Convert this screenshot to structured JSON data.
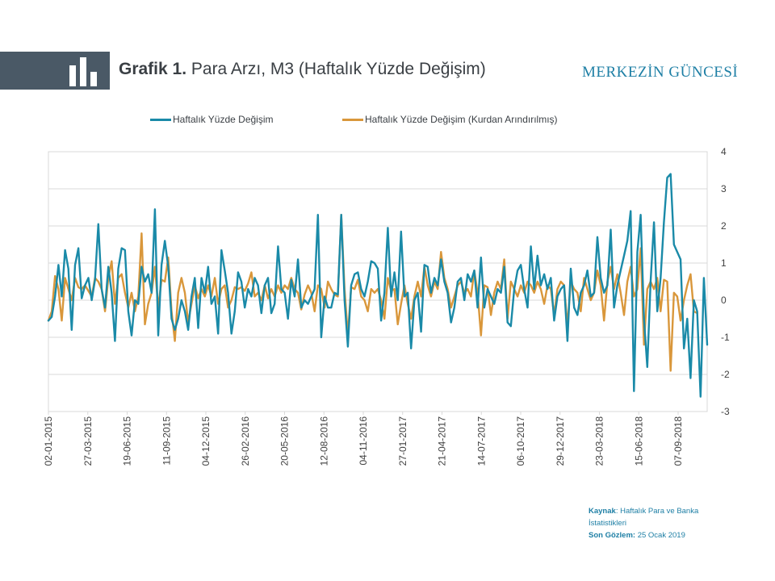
{
  "header": {
    "title_bold": "Grafik 1.",
    "title_rest": " Para Arzı, M3 (Haftalık Yüzde Değişim)",
    "brand": "MERKEZİN GÜNCESİ"
  },
  "source": {
    "label1": "Kaynak",
    "text1": ": Haftalık Para ve Banka İstatistikleri",
    "label2": "Son Gözlem:",
    "text2": " 25 Ocak 2019"
  },
  "chart_data": {
    "type": "line",
    "title": "",
    "xlabel": "",
    "ylabel": "",
    "ylim": [
      -3,
      4
    ],
    "yticks": [
      "4",
      "3",
      "2",
      "1",
      "0",
      "-1",
      "-2",
      "-3"
    ],
    "x_tick_labels": [
      "02-01-2015",
      "27-03-2015",
      "19-06-2015",
      "11-09-2015",
      "04-12-2015",
      "26-02-2016",
      "20-05-2016",
      "12-08-2016",
      "04-11-2016",
      "27-01-2017",
      "21-04-2017",
      "14-07-2017",
      "06-10-2017",
      "29-12-2017",
      "23-03-2018",
      "15-06-2018",
      "07-09-2018"
    ],
    "legend_position": "top",
    "grid": true,
    "colors": {
      "series1": "#1a8aa8",
      "series2": "#d9973b"
    },
    "series": [
      {
        "name": "Haftalık Yüzde Değişim",
        "values": [
          -0.55,
          -0.45,
          0.1,
          0.95,
          0.1,
          1.35,
          0.85,
          -0.8,
          0.95,
          1.4,
          0.05,
          0.4,
          0.6,
          0.0,
          0.55,
          2.05,
          0.3,
          -0.2,
          0.9,
          0.2,
          -1.1,
          0.85,
          1.4,
          1.35,
          -0.3,
          -0.95,
          0.0,
          -0.1,
          0.9,
          0.5,
          0.7,
          0.2,
          2.45,
          -0.95,
          0.95,
          1.6,
          0.9,
          -0.5,
          -0.8,
          -0.5,
          0.0,
          -0.3,
          -0.8,
          0.1,
          0.6,
          -0.75,
          0.6,
          0.2,
          0.9,
          -0.1,
          0.1,
          -0.9,
          1.35,
          0.8,
          0.2,
          -0.9,
          -0.3,
          0.75,
          0.5,
          -0.2,
          0.3,
          0.1,
          0.6,
          0.4,
          -0.35,
          0.4,
          0.6,
          -0.35,
          -0.1,
          1.45,
          0.3,
          0.2,
          -0.5,
          0.55,
          0.1,
          1.1,
          -0.2,
          0.0,
          -0.1,
          0.1,
          0.3,
          2.3,
          -1.0,
          0.1,
          -0.2,
          -0.2,
          0.2,
          0.15,
          2.3,
          0.0,
          -1.25,
          0.4,
          0.7,
          0.75,
          0.3,
          0.1,
          0.5,
          1.05,
          1.0,
          0.85,
          -0.55,
          0.2,
          1.95,
          0.1,
          0.75,
          0.0,
          1.85,
          0.1,
          0.2,
          -1.3,
          0.0,
          0.2,
          -0.85,
          0.95,
          0.9,
          0.2,
          0.6,
          0.4,
          1.1,
          0.5,
          0.2,
          -0.6,
          -0.2,
          0.5,
          0.6,
          0.0,
          0.7,
          0.5,
          0.8,
          -0.2,
          1.15,
          -0.2,
          0.3,
          0.1,
          -0.1,
          0.3,
          0.2,
          0.9,
          -0.6,
          -0.7,
          0.3,
          0.8,
          0.95,
          0.3,
          -0.2,
          1.45,
          0.3,
          1.2,
          0.4,
          0.7,
          0.3,
          0.6,
          -0.55,
          0.1,
          0.3,
          0.4,
          -1.1,
          0.85,
          -0.2,
          -0.4,
          0.2,
          0.4,
          0.8,
          0.1,
          0.2,
          1.7,
          0.6,
          0.2,
          0.4,
          1.9,
          -0.2,
          0.4,
          0.8,
          1.2,
          1.6,
          2.4,
          -2.45,
          1.3,
          2.3,
          -0.5,
          -1.8,
          0.5,
          2.1,
          -0.3,
          0.6,
          2.1,
          3.3,
          3.4,
          1.5,
          1.3,
          1.1,
          -1.3,
          -0.5,
          -2.1,
          0.0,
          -0.3,
          -2.6,
          0.6,
          -1.2
        ]
      },
      {
        "name": "Haftalık Yüzde Değişim (Kurdan Arındırılmış)",
        "values": [
          -0.55,
          -0.3,
          0.65,
          0.3,
          -0.55,
          0.6,
          0.3,
          0.0,
          0.6,
          0.35,
          0.3,
          0.4,
          0.25,
          0.1,
          0.6,
          0.5,
          0.3,
          -0.3,
          0.6,
          1.05,
          -0.1,
          0.6,
          0.7,
          0.2,
          -0.2,
          0.2,
          -0.3,
          0.1,
          1.8,
          -0.65,
          -0.1,
          0.2,
          0.9,
          -0.2,
          0.55,
          0.5,
          1.15,
          -0.3,
          -1.1,
          0.2,
          0.6,
          0.2,
          -0.6,
          -0.1,
          0.4,
          0.05,
          0.3,
          0.1,
          0.4,
          0.1,
          0.6,
          -0.1,
          0.3,
          0.4,
          -0.2,
          0.0,
          0.35,
          0.3,
          0.35,
          0.25,
          0.45,
          0.75,
          0.1,
          0.2,
          0.0,
          0.4,
          0.05,
          0.3,
          0.1,
          0.4,
          0.2,
          0.4,
          0.3,
          0.6,
          0.3,
          0.2,
          -0.25,
          0.15,
          0.4,
          0.2,
          -0.3,
          0.4,
          0.3,
          -0.2,
          0.5,
          0.3,
          0.15,
          0.1,
          2.3,
          0.3,
          -0.95,
          0.35,
          0.3,
          0.55,
          0.1,
          0.0,
          -0.3,
          0.3,
          0.2,
          0.3,
          0.0,
          -0.5,
          0.6,
          0.25,
          0.3,
          -0.65,
          -0.1,
          0.4,
          -0.1,
          -0.5,
          0.1,
          0.5,
          0.1,
          0.9,
          0.4,
          0.1,
          0.5,
          0.3,
          1.3,
          0.6,
          0.3,
          -0.2,
          0.1,
          0.4,
          0.5,
          0.2,
          0.3,
          0.1,
          0.8,
          0.2,
          -0.95,
          0.4,
          0.35,
          -0.4,
          0.2,
          0.5,
          0.3,
          1.1,
          -0.5,
          0.5,
          0.3,
          0.1,
          0.4,
          0.2,
          0.5,
          0.4,
          0.2,
          0.5,
          0.3,
          -0.1,
          0.4,
          0.3,
          -0.4,
          0.3,
          0.5,
          0.4,
          -0.7,
          0.5,
          0.3,
          0.2,
          -0.3,
          0.6,
          0.3,
          0.0,
          0.2,
          0.8,
          0.4,
          -0.55,
          0.5,
          0.9,
          0.3,
          0.7,
          0.2,
          -0.4,
          0.5,
          0.9,
          0.1,
          0.3,
          1.4,
          -1.2,
          0.3,
          0.5,
          0.3,
          0.6,
          -0.3,
          0.55,
          0.5,
          -1.9,
          0.2,
          0.1,
          -0.55,
          0.0,
          0.4,
          0.7,
          -0.3,
          -0.35
        ]
      }
    ]
  }
}
